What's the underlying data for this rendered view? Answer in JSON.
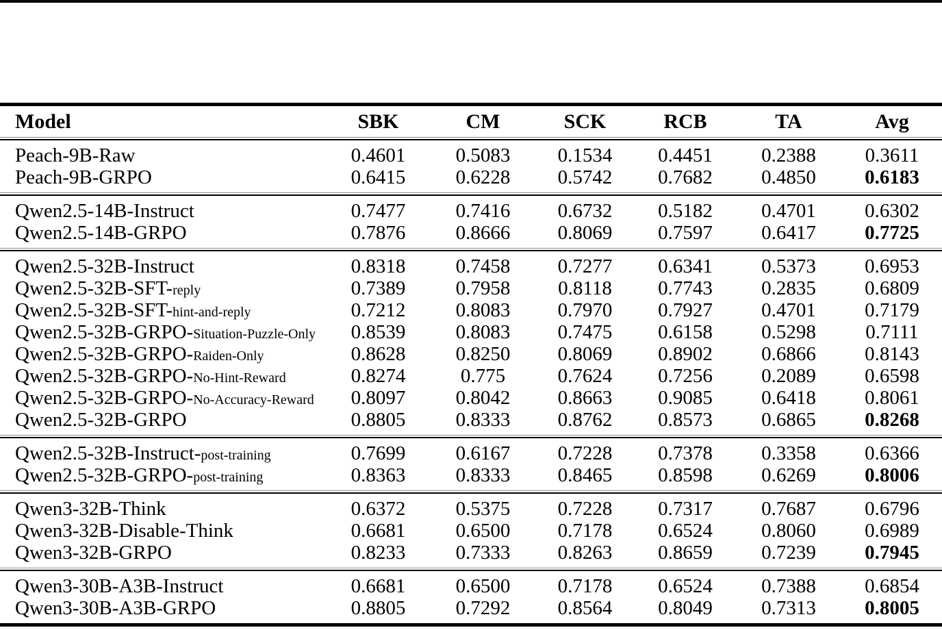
{
  "table": {
    "header": {
      "model": "Model",
      "cols": [
        "SBK",
        "CM",
        "SCK",
        "RCB",
        "TA",
        "Avg"
      ]
    },
    "groups": [
      {
        "rows": [
          {
            "name": "Peach-9B-Raw",
            "sub": "",
            "vals": [
              "0.4601",
              "0.5083",
              "0.1534",
              "0.4451",
              "0.2388",
              "0.3611"
            ],
            "bold_avg": false
          },
          {
            "name": "Peach-9B-GRPO",
            "sub": "",
            "vals": [
              "0.6415",
              "0.6228",
              "0.5742",
              "0.7682",
              "0.4850",
              "0.6183"
            ],
            "bold_avg": true
          }
        ]
      },
      {
        "rows": [
          {
            "name": "Qwen2.5-14B-Instruct",
            "sub": "",
            "vals": [
              "0.7477",
              "0.7416",
              "0.6732",
              "0.5182",
              "0.4701",
              "0.6302"
            ],
            "bold_avg": false
          },
          {
            "name": "Qwen2.5-14B-GRPO",
            "sub": "",
            "vals": [
              "0.7876",
              "0.8666",
              "0.8069",
              "0.7597",
              "0.6417",
              "0.7725"
            ],
            "bold_avg": true
          }
        ]
      },
      {
        "rows": [
          {
            "name": "Qwen2.5-32B-Instruct",
            "sub": "",
            "vals": [
              "0.8318",
              "0.7458",
              "0.7277",
              "0.6341",
              "0.5373",
              "0.6953"
            ],
            "bold_avg": false
          },
          {
            "name": "Qwen2.5-32B-SFT-",
            "sub": "reply",
            "vals": [
              "0.7389",
              "0.7958",
              "0.8118",
              "0.7743",
              "0.2835",
              "0.6809"
            ],
            "bold_avg": false
          },
          {
            "name": "Qwen2.5-32B-SFT-",
            "sub": "hint-and-reply",
            "vals": [
              "0.7212",
              "0.8083",
              "0.7970",
              "0.7927",
              "0.4701",
              "0.7179"
            ],
            "bold_avg": false
          },
          {
            "name": "Qwen2.5-32B-GRPO-",
            "sub": "Situation-Puzzle-Only",
            "vals": [
              "0.8539",
              "0.8083",
              "0.7475",
              "0.6158",
              "0.5298",
              "0.7111"
            ],
            "bold_avg": false
          },
          {
            "name": "Qwen2.5-32B-GRPO-",
            "sub": "Raiden-Only",
            "vals": [
              "0.8628",
              "0.8250",
              "0.8069",
              "0.8902",
              "0.6866",
              "0.8143"
            ],
            "bold_avg": false
          },
          {
            "name": "Qwen2.5-32B-GRPO-",
            "sub": "No-Hint-Reward",
            "vals": [
              "0.8274",
              "0.775",
              "0.7624",
              "0.7256",
              "0.2089",
              "0.6598"
            ],
            "bold_avg": false
          },
          {
            "name": "Qwen2.5-32B-GRPO-",
            "sub": "No-Accuracy-Reward",
            "vals": [
              "0.8097",
              "0.8042",
              "0.8663",
              "0.9085",
              "0.6418",
              "0.8061"
            ],
            "bold_avg": false
          },
          {
            "name": "Qwen2.5-32B-GRPO",
            "sub": "",
            "vals": [
              "0.8805",
              "0.8333",
              "0.8762",
              "0.8573",
              "0.6865",
              "0.8268"
            ],
            "bold_avg": true
          }
        ]
      },
      {
        "rows": [
          {
            "name": "Qwen2.5-32B-Instruct-",
            "sub": "post-training",
            "vals": [
              "0.7699",
              "0.6167",
              "0.7228",
              "0.7378",
              "0.3358",
              "0.6366"
            ],
            "bold_avg": false
          },
          {
            "name": "Qwen2.5-32B-GRPO-",
            "sub": "post-training",
            "vals": [
              "0.8363",
              "0.8333",
              "0.8465",
              "0.8598",
              "0.6269",
              "0.8006"
            ],
            "bold_avg": true
          }
        ]
      },
      {
        "rows": [
          {
            "name": "Qwen3-32B-Think",
            "sub": "",
            "vals": [
              "0.6372",
              "0.5375",
              "0.7228",
              "0.7317",
              "0.7687",
              "0.6796"
            ],
            "bold_avg": false
          },
          {
            "name": "Qwen3-32B-Disable-Think",
            "sub": "",
            "vals": [
              "0.6681",
              "0.6500",
              "0.7178",
              "0.6524",
              "0.8060",
              "0.6989"
            ],
            "bold_avg": false
          },
          {
            "name": "Qwen3-32B-GRPO",
            "sub": "",
            "vals": [
              "0.8233",
              "0.7333",
              "0.8263",
              "0.8659",
              "0.7239",
              "0.7945"
            ],
            "bold_avg": true
          }
        ]
      },
      {
        "rows": [
          {
            "name": "Qwen3-30B-A3B-Instruct",
            "sub": "",
            "vals": [
              "0.6681",
              "0.6500",
              "0.7178",
              "0.6524",
              "0.7388",
              "0.6854"
            ],
            "bold_avg": false
          },
          {
            "name": "Qwen3-30B-A3B-GRPO",
            "sub": "",
            "vals": [
              "0.8805",
              "0.7292",
              "0.8564",
              "0.8049",
              "0.7313",
              "0.8005"
            ],
            "bold_avg": true
          }
        ]
      }
    ]
  }
}
